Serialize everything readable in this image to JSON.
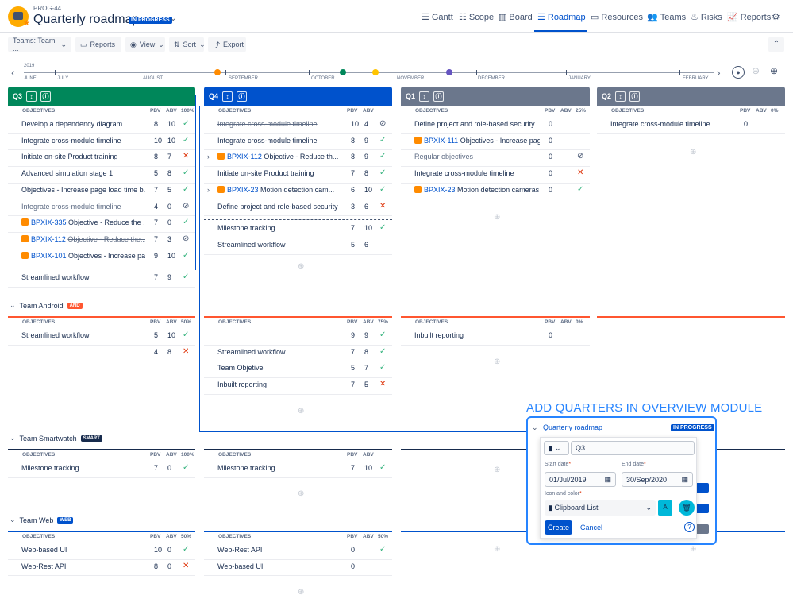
{
  "header": {
    "project_key": "PROG-44",
    "title": "Quarterly roadmap",
    "status": "IN PROGRESS",
    "nav": [
      {
        "label": "Gantt",
        "icon": "gantt-icon"
      },
      {
        "label": "Scope",
        "icon": "list-icon"
      },
      {
        "label": "Board",
        "icon": "board-icon"
      },
      {
        "label": "Roadmap",
        "icon": "roadmap-icon"
      },
      {
        "label": "Resources",
        "icon": "resources-icon"
      },
      {
        "label": "Teams",
        "icon": "teams-icon"
      },
      {
        "label": "Risks",
        "icon": "fire-icon"
      },
      {
        "label": "Reports",
        "icon": "chart-icon"
      }
    ],
    "active_nav": "Roadmap"
  },
  "toolbar": {
    "teams": "Teams: Team ...",
    "reports": "Reports",
    "view": "View",
    "sort": "Sort",
    "export": "Export"
  },
  "timeline": {
    "year": "2019",
    "months": [
      "JUNE",
      "JULY",
      "AUGUST",
      "SEPTEMBER",
      "OCTOBER",
      "NOVEMBER",
      "DECEMBER",
      "JANUARY",
      "FEBRUARY"
    ],
    "milestone_colors": [
      "#ff8b00",
      "#00875a",
      "#ffc400",
      "#6554c0"
    ]
  },
  "quarters": [
    {
      "label": "Q3",
      "color": "#00875a"
    },
    {
      "label": "Q4",
      "color": "#0052cc"
    },
    {
      "label": "Q1",
      "color": "#6b778c"
    },
    {
      "label": "Q2",
      "color": "#6b778c"
    }
  ],
  "columns": {
    "objectives": "OBJECTIVES",
    "pbv": "PBV",
    "abv": "ABV"
  },
  "team_main": {
    "q3": {
      "pct": "100%",
      "rows": [
        {
          "name": "Develop a dependency diagram",
          "pbv": "8",
          "abv": "10",
          "st": "check"
        },
        {
          "name": "Integrate cross-module timeline",
          "pbv": "10",
          "abv": "10",
          "st": "check"
        },
        {
          "name": "Initiate on-site Product training",
          "pbv": "8",
          "abv": "7",
          "st": "cross"
        },
        {
          "name": "Advanced simulation stage 1",
          "pbv": "5",
          "abv": "8",
          "st": "check"
        },
        {
          "name": "Objectives - Increase page load time b...",
          "pbv": "7",
          "abv": "5",
          "st": "check"
        },
        {
          "name": "Integrate cross-module timeline",
          "pbv": "4",
          "abv": "0",
          "st": "ban",
          "strike": true
        },
        {
          "key": "BPXIX-335",
          "name": "Objective - Reduce the ...",
          "pbv": "7",
          "abv": "0",
          "st": "check"
        },
        {
          "key": "BPXIX-112",
          "name": "Objective - Reduce the...",
          "pbv": "7",
          "abv": "3",
          "st": "ban",
          "strike": true
        },
        {
          "key": "BPXIX-101",
          "name": "Objectives - Increase pa...",
          "pbv": "9",
          "abv": "10",
          "st": "check"
        }
      ],
      "after": [
        {
          "name": "Streamlined workflow",
          "pbv": "7",
          "abv": "9",
          "st": "check"
        }
      ]
    },
    "q4": {
      "pct": "",
      "rows": [
        {
          "name": "Integrate cross-module timeline",
          "pbv": "10",
          "abv": "4",
          "st": "ban",
          "strike": true
        },
        {
          "name": "Integrate cross-module timeline",
          "pbv": "8",
          "abv": "9",
          "st": "check"
        },
        {
          "key": "BPXIX-112",
          "name": "Objective - Reduce th...",
          "pbv": "8",
          "abv": "9",
          "st": "check",
          "expand": true
        },
        {
          "name": "Initiate on-site Product training",
          "pbv": "7",
          "abv": "8",
          "st": "check"
        },
        {
          "key": "BPXIX-23",
          "name": "Motion detection cam...",
          "pbv": "6",
          "abv": "10",
          "st": "check",
          "expand": true
        },
        {
          "name": "Define project and role-based security",
          "pbv": "3",
          "abv": "6",
          "st": "cross"
        }
      ],
      "after": [
        {
          "name": "Milestone tracking",
          "pbv": "7",
          "abv": "10",
          "st": "check"
        },
        {
          "name": "Streamlined workflow",
          "pbv": "5",
          "abv": "6",
          "st": ""
        }
      ]
    },
    "q1": {
      "pct": "25%",
      "rows": [
        {
          "name": "Define project and role-based security",
          "pbv": "0",
          "abv": "",
          "st": ""
        },
        {
          "key": "BPXIX-111",
          "name": "Objectives - Increase page ...",
          "pbv": "0",
          "abv": "",
          "st": ""
        },
        {
          "name": "Regular objectives",
          "pbv": "0",
          "abv": "",
          "st": "ban",
          "strike": true
        },
        {
          "name": "Integrate cross-module timeline",
          "pbv": "0",
          "abv": "",
          "st": "cross"
        },
        {
          "key": "BPXIX-23",
          "name": "Motion detection cameras a...",
          "pbv": "0",
          "abv": "",
          "st": "check"
        }
      ]
    },
    "q2": {
      "pct": "0%",
      "rows": [
        {
          "name": "Integrate cross-module timeline",
          "pbv": "0",
          "abv": "",
          "st": ""
        }
      ]
    }
  },
  "teams": [
    {
      "name": "Team Android",
      "badge": "AND",
      "color": "#ff5630",
      "q3": {
        "pct": "50%",
        "rows": [
          {
            "name": "Streamlined workflow",
            "pbv": "5",
            "abv": "10",
            "st": "check"
          },
          {
            "name": "",
            "pbv": "4",
            "abv": "8",
            "st": "cross"
          }
        ]
      },
      "q4": {
        "pct": "75%",
        "rows": [
          {
            "name": "",
            "pbv": "9",
            "abv": "9",
            "st": "check"
          },
          {
            "name": "Streamlined workflow",
            "pbv": "7",
            "abv": "8",
            "st": "check"
          },
          {
            "name": "Team Objetive",
            "pbv": "5",
            "abv": "7",
            "st": "check"
          },
          {
            "name": "Inbuilt reporting",
            "pbv": "7",
            "abv": "5",
            "st": "cross"
          }
        ]
      },
      "q1": {
        "pct": "0%",
        "rows": [
          {
            "name": "Inbuilt reporting",
            "pbv": "0",
            "abv": "",
            "st": ""
          }
        ]
      }
    },
    {
      "name": "Team Smartwatch",
      "badge": "SMART",
      "color": "#172b4d",
      "q3": {
        "pct": "100%",
        "rows": [
          {
            "name": "Milestone tracking",
            "pbv": "7",
            "abv": "0",
            "st": "check"
          }
        ]
      },
      "q4": {
        "pct": "",
        "rows": [
          {
            "name": "Milestone tracking",
            "pbv": "7",
            "abv": "10",
            "st": "check"
          }
        ]
      }
    },
    {
      "name": "Team Web",
      "badge": "WEB",
      "color": "#0052cc",
      "q3": {
        "pct": "50%",
        "rows": [
          {
            "name": "Web-based UI",
            "pbv": "10",
            "abv": "0",
            "st": "check"
          },
          {
            "name": "Web-Rest API",
            "pbv": "8",
            "abv": "0",
            "st": "cross"
          }
        ]
      },
      "q4": {
        "pct": "50%",
        "rows": [
          {
            "name": "Web-Rest API",
            "pbv": "0",
            "abv": "",
            "st": "check"
          },
          {
            "name": "Web-based UI",
            "pbv": "0",
            "abv": "",
            "st": ""
          }
        ]
      }
    }
  ],
  "callout": {
    "title": "ADD QUARTERS IN OVERVIEW MODULE",
    "roadmap": "Quarterly roadmap",
    "status": "IN PROGRESS",
    "quarter_name": "Q3",
    "start_label": "Start date",
    "end_label": "End date",
    "start": "01/Jul/2019",
    "end": "30/Sep/2020",
    "icon_label": "Icon and color",
    "icon_value": "Clipboard List",
    "color_letter": "A",
    "create": "Create",
    "cancel": "Cancel"
  }
}
